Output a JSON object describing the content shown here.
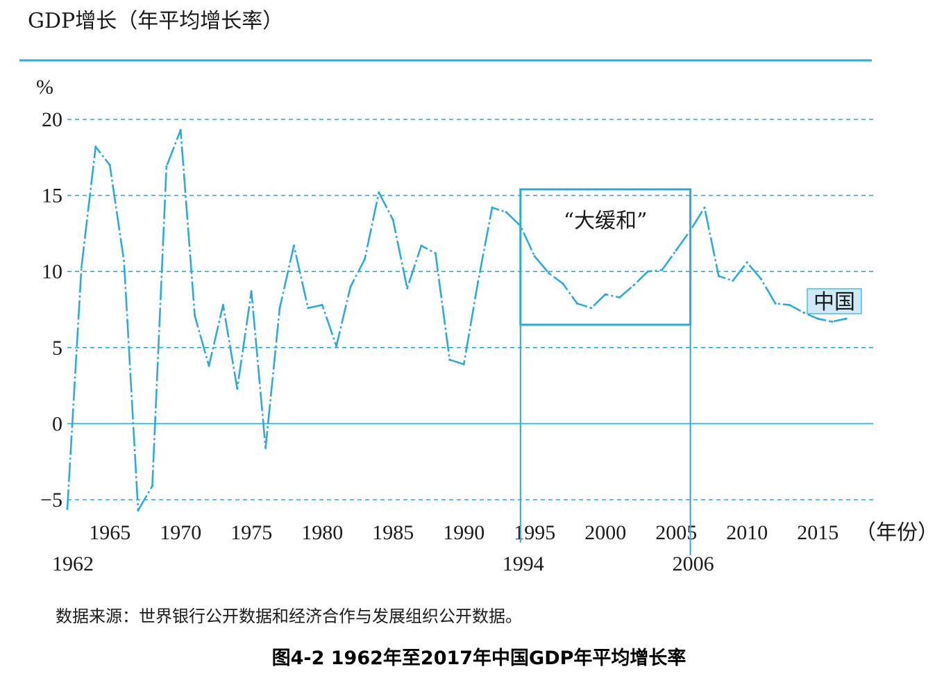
{
  "colors": {
    "accent": "#29abe2",
    "text": "#1a1a1a"
  },
  "figure": {
    "header_title": "GDP增长（年平均增长率）",
    "unit_label": "%",
    "x_unit_label": "（年份）",
    "source": "数据来源：世界银行公开数据和经济合作与发展组织公开数据。",
    "caption": "图4-2 1962年至2017年中国GDP年平均增长率"
  },
  "chart_data": {
    "type": "line",
    "title": "GDP增长（年平均增长率）",
    "ylabel": "%",
    "xlabel": "（年份）",
    "ylim": [
      -5,
      20
    ],
    "xlim": [
      1962,
      2017
    ],
    "y_ticks": [
      "20",
      "15",
      "10",
      "5",
      "0",
      "−5"
    ],
    "y_tick_values": [
      20,
      15,
      10,
      5,
      0,
      -5
    ],
    "x_ticks": [
      "1965",
      "1970",
      "1975",
      "1980",
      "1985",
      "1990",
      "1995",
      "2000",
      "2005",
      "2010",
      "2015"
    ],
    "x_tick_values": [
      1965,
      1970,
      1975,
      1980,
      1985,
      1990,
      1995,
      2000,
      2005,
      2010,
      2015
    ],
    "x_ticks_lower": [
      "1962",
      "1994",
      "2006"
    ],
    "x_ticks_lower_values": [
      1962,
      1994,
      2006
    ],
    "grid": true,
    "series": [
      {
        "name": "中国",
        "x": [
          1962,
          1963,
          1964,
          1965,
          1966,
          1967,
          1968,
          1969,
          1970,
          1971,
          1972,
          1973,
          1974,
          1975,
          1976,
          1977,
          1978,
          1979,
          1980,
          1981,
          1982,
          1983,
          1984,
          1985,
          1986,
          1987,
          1988,
          1989,
          1990,
          1991,
          1992,
          1993,
          1994,
          1995,
          1996,
          1997,
          1998,
          1999,
          2000,
          2001,
          2002,
          2003,
          2004,
          2005,
          2006,
          2007,
          2008,
          2009,
          2010,
          2011,
          2012,
          2013,
          2014,
          2015,
          2016,
          2017
        ],
        "values": [
          -5.6,
          10.3,
          18.2,
          17.0,
          10.7,
          -5.7,
          -4.1,
          16.9,
          19.3,
          7.1,
          3.8,
          7.8,
          2.3,
          8.7,
          -1.6,
          7.6,
          11.7,
          7.6,
          7.8,
          5.1,
          9.0,
          10.8,
          15.2,
          13.4,
          8.9,
          11.7,
          11.2,
          4.2,
          3.9,
          9.3,
          14.2,
          13.9,
          13.0,
          11.0,
          9.9,
          9.2,
          7.9,
          7.6,
          8.5,
          8.3,
          9.1,
          10.0,
          10.1,
          11.4,
          12.7,
          14.2,
          9.7,
          9.4,
          10.6,
          9.5,
          7.9,
          7.8,
          7.3,
          6.9,
          6.7,
          6.9
        ]
      }
    ],
    "annotations": [
      {
        "text": "“大缓和”",
        "x_range": [
          1994,
          2006
        ],
        "y_range": [
          6.5,
          15.4
        ]
      }
    ],
    "legend": {
      "label": "中国",
      "placement": "right"
    }
  }
}
